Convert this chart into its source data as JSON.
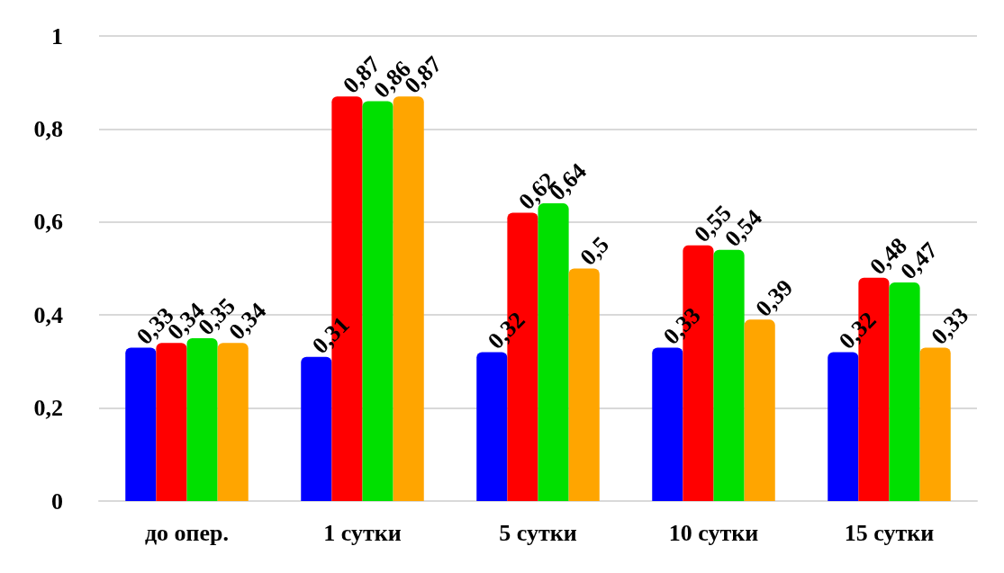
{
  "chart_data": {
    "type": "bar",
    "categories": [
      "до опер.",
      "1 сутки",
      "5 сутки",
      "10 сутки",
      "15 сутки"
    ],
    "series": [
      {
        "color": "#0000ff",
        "values": [
          0.33,
          0.31,
          0.32,
          0.33,
          0.32
        ],
        "value_labels": [
          "0,33",
          "0,31",
          "0,32",
          "0,33",
          "0,32"
        ]
      },
      {
        "color": "#ff0000",
        "values": [
          0.34,
          0.87,
          0.62,
          0.55,
          0.48
        ],
        "value_labels": [
          "0,34",
          "0,87",
          "0,62",
          "0,55",
          "0,48"
        ]
      },
      {
        "color": "#00e000",
        "values": [
          0.35,
          0.86,
          0.64,
          0.54,
          0.47
        ],
        "value_labels": [
          "0,35",
          "0,86",
          "0,64",
          "0,54",
          "0,47"
        ]
      },
      {
        "color": "#ffa500",
        "values": [
          0.34,
          0.87,
          0.5,
          0.39,
          0.33
        ],
        "value_labels": [
          "0,34",
          "0,87",
          "0,5",
          "0,39",
          "0,33"
        ]
      }
    ],
    "ylim": [
      0,
      1
    ],
    "yticks": [
      {
        "value": 0,
        "label": "0"
      },
      {
        "value": 0.2,
        "label": "0,2"
      },
      {
        "value": 0.4,
        "label": "0,4"
      },
      {
        "value": 0.6,
        "label": "0,6"
      },
      {
        "value": 0.8,
        "label": "0,8"
      },
      {
        "value": 1,
        "label": "1"
      }
    ],
    "grid": "y"
  }
}
